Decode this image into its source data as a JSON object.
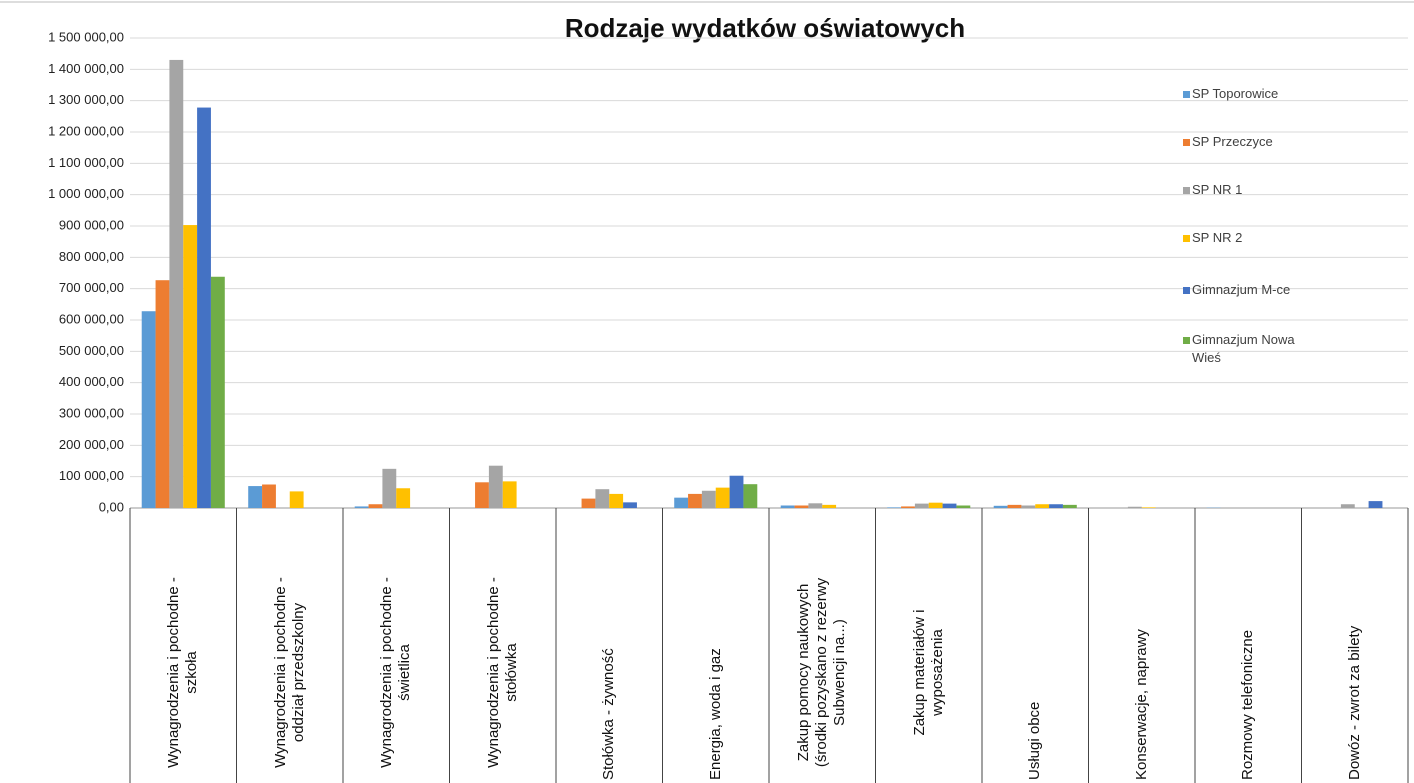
{
  "chart_data": {
    "type": "bar",
    "title": "Rodzaje wydatków oświatowych",
    "categories": [
      "Wynagrodzenia i pochodne - szkoła",
      "Wynagrodzenia i pochodne - oddział przedszkolny",
      "Wynagrodzenia i pochodne - świetlica",
      "Wynagrodzenia i pochodne - stołówka",
      "Stołówka - żywność",
      "Energia, woda i gaz",
      "Zakup pomocy naukowych (środki pozyskano z rezerwy Subwencji na...)",
      "Zakup materiałów i wyposażenia",
      "Usługi obce",
      "Konserwacje, naprawy",
      "Rozmowy telefoniczne",
      "Dowóz - zwrot za bilety"
    ],
    "series": [
      {
        "name": "SP Toporowice",
        "color": "#5b9bd5",
        "values": [
          628000,
          70000,
          5000,
          0,
          0,
          33000,
          8000,
          2000,
          7000,
          0,
          1000,
          0
        ]
      },
      {
        "name": "SP Przeczyce",
        "color": "#ed7d31",
        "values": [
          727000,
          75000,
          12000,
          82000,
          30000,
          45000,
          8000,
          5000,
          10000,
          0,
          0,
          0
        ]
      },
      {
        "name": "SP NR 1",
        "color": "#a5a5a5",
        "values": [
          1430000,
          0,
          125000,
          135000,
          60000,
          55000,
          15000,
          14000,
          8000,
          4000,
          0,
          12000
        ]
      },
      {
        "name": "SP NR 2",
        "color": "#ffc000",
        "values": [
          903000,
          53000,
          63000,
          85000,
          45000,
          65000,
          10000,
          17000,
          12000,
          2000,
          0,
          0
        ]
      },
      {
        "name": "Gimnazjum M-ce",
        "color": "#4472c4",
        "values": [
          1278000,
          0,
          0,
          0,
          18000,
          103000,
          0,
          14000,
          12000,
          0,
          0,
          22000
        ]
      },
      {
        "name": "Gimnazjum Nowa Wieś",
        "color": "#70ad47",
        "values": [
          738000,
          0,
          0,
          0,
          0,
          76000,
          0,
          8000,
          10000,
          0,
          0,
          0
        ]
      }
    ],
    "ylim": [
      0,
      1500000
    ],
    "yticks": [
      {
        "value": 0,
        "label": "0,00"
      },
      {
        "value": 100000,
        "label": "100 000,00"
      },
      {
        "value": 200000,
        "label": "200 000,00"
      },
      {
        "value": 300000,
        "label": "300 000,00"
      },
      {
        "value": 400000,
        "label": "400 000,00"
      },
      {
        "value": 500000,
        "label": "500 000,00"
      },
      {
        "value": 600000,
        "label": "600 000,00"
      },
      {
        "value": 700000,
        "label": "700 000,00"
      },
      {
        "value": 800000,
        "label": "800 000,00"
      },
      {
        "value": 900000,
        "label": "900 000,00"
      },
      {
        "value": 1000000,
        "label": "1 000 000,00"
      },
      {
        "value": 1100000,
        "label": "1 100 000,00"
      },
      {
        "value": 1200000,
        "label": "1 200 000,00"
      },
      {
        "value": 1300000,
        "label": "1 300 000,00"
      },
      {
        "value": 1400000,
        "label": "1 400 000,00"
      },
      {
        "value": 1500000,
        "label": "1 500 000,00"
      }
    ],
    "grid": true,
    "legend": "right"
  }
}
